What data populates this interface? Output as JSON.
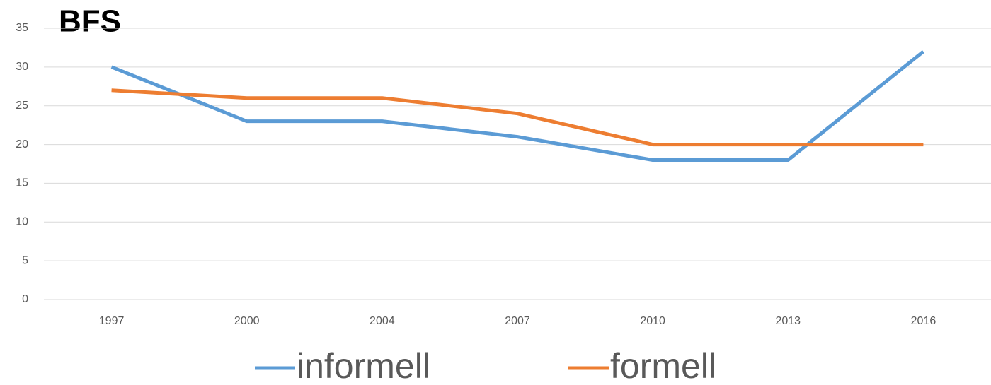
{
  "chart_data": {
    "type": "line",
    "title": "BFS",
    "categories": [
      "1997",
      "2000",
      "2004",
      "2007",
      "2010",
      "2013",
      "2016"
    ],
    "series": [
      {
        "name": "informell",
        "color": "#5b9bd5",
        "values": [
          30,
          23,
          23,
          21,
          18,
          18,
          32
        ]
      },
      {
        "name": "formell",
        "color": "#ed7d31",
        "values": [
          27,
          26,
          26,
          24,
          20,
          20,
          20
        ]
      }
    ],
    "ylim": [
      0,
      35
    ],
    "yticks": [
      0,
      5,
      10,
      15,
      20,
      25,
      30,
      35
    ],
    "grid": true,
    "legend": "bottom"
  }
}
